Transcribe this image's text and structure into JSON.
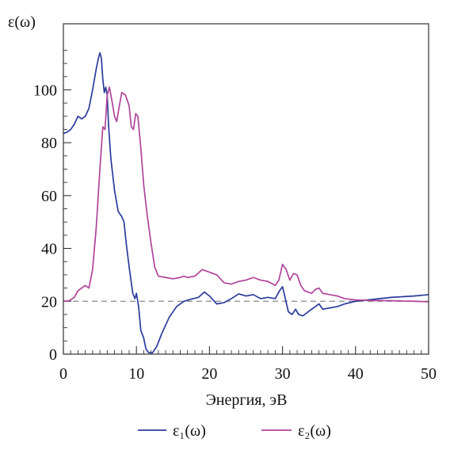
{
  "chart_data": {
    "type": "line",
    "title": "",
    "xlabel": "Энергия, эВ",
    "ylabel": "ε(ω)",
    "xlim": [
      0,
      50
    ],
    "ylim": [
      0,
      125
    ],
    "xticks": [
      0,
      10,
      20,
      30,
      40,
      50
    ],
    "yticks": [
      0,
      20,
      40,
      60,
      80,
      100
    ],
    "xtick_labels": [
      "0",
      "10",
      "20",
      "30",
      "40",
      "50"
    ],
    "ytick_labels": [
      "0",
      "20",
      "40",
      "60",
      "80",
      "100"
    ],
    "grid": false,
    "legend_position": "bottom",
    "reference_line": {
      "y": 20,
      "style": "dashed",
      "color": "#8a8a8a"
    },
    "series": [
      {
        "name": "ε₁(ω)",
        "color": "#2a3b9c",
        "points": [
          [
            0,
            83.5
          ],
          [
            0.5,
            84
          ],
          [
            1,
            85
          ],
          [
            1.5,
            87
          ],
          [
            2,
            90
          ],
          [
            2.5,
            89
          ],
          [
            3,
            90
          ],
          [
            3.5,
            93
          ],
          [
            4,
            100
          ],
          [
            4.5,
            108
          ],
          [
            4.8,
            112
          ],
          [
            5,
            114
          ],
          [
            5.2,
            112
          ],
          [
            5.4,
            104
          ],
          [
            5.6,
            99
          ],
          [
            5.8,
            101
          ],
          [
            6,
            98
          ],
          [
            6.2,
            86
          ],
          [
            6.5,
            74
          ],
          [
            7,
            62
          ],
          [
            7.5,
            54
          ],
          [
            8,
            52
          ],
          [
            8.3,
            50
          ],
          [
            8.6,
            42
          ],
          [
            9,
            33
          ],
          [
            9.5,
            23
          ],
          [
            9.8,
            21
          ],
          [
            10,
            23
          ],
          [
            10.3,
            18
          ],
          [
            10.6,
            9
          ],
          [
            11,
            6
          ],
          [
            11.3,
            2
          ],
          [
            11.7,
            0.5
          ],
          [
            12.2,
            0.5
          ],
          [
            12.8,
            3
          ],
          [
            13.5,
            8
          ],
          [
            14.5,
            14
          ],
          [
            15.5,
            18
          ],
          [
            16.5,
            20
          ],
          [
            17.5,
            20.8
          ],
          [
            18.5,
            21.5
          ],
          [
            19.3,
            23.5
          ],
          [
            20,
            22
          ],
          [
            21,
            19
          ],
          [
            22,
            19.5
          ],
          [
            23,
            21
          ],
          [
            24,
            22.8
          ],
          [
            25,
            22
          ],
          [
            26,
            22.5
          ],
          [
            27,
            21
          ],
          [
            28,
            21.5
          ],
          [
            29,
            21
          ],
          [
            29.6,
            24
          ],
          [
            30,
            25.5
          ],
          [
            30.3,
            22
          ],
          [
            30.8,
            16
          ],
          [
            31.3,
            15
          ],
          [
            31.8,
            17
          ],
          [
            32.2,
            15
          ],
          [
            32.8,
            14.5
          ],
          [
            33.5,
            16
          ],
          [
            34.5,
            18
          ],
          [
            35,
            19
          ],
          [
            35.5,
            17
          ],
          [
            36.5,
            17.5
          ],
          [
            37.5,
            18
          ],
          [
            38.5,
            19
          ],
          [
            40,
            20
          ],
          [
            42,
            20.6
          ],
          [
            45,
            21.5
          ],
          [
            48,
            22
          ],
          [
            50,
            22.5
          ]
        ]
      },
      {
        "name": "ε₂(ω)",
        "color": "#b0449a",
        "points": [
          [
            0,
            20
          ],
          [
            0.8,
            20.2
          ],
          [
            1.5,
            21.5
          ],
          [
            2,
            24
          ],
          [
            2.5,
            25
          ],
          [
            3,
            26
          ],
          [
            3.5,
            25
          ],
          [
            4,
            32
          ],
          [
            4.5,
            48
          ],
          [
            5,
            70
          ],
          [
            5.4,
            86
          ],
          [
            5.7,
            85
          ],
          [
            6,
            98
          ],
          [
            6.3,
            101
          ],
          [
            6.7,
            95
          ],
          [
            7,
            90
          ],
          [
            7.3,
            88
          ],
          [
            7.6,
            93
          ],
          [
            8,
            99
          ],
          [
            8.5,
            98
          ],
          [
            9,
            94
          ],
          [
            9.3,
            86
          ],
          [
            9.6,
            85
          ],
          [
            9.9,
            91
          ],
          [
            10.2,
            90
          ],
          [
            10.6,
            78
          ],
          [
            11,
            64
          ],
          [
            11.5,
            52
          ],
          [
            12,
            42
          ],
          [
            12.5,
            33
          ],
          [
            13,
            29.5
          ],
          [
            14,
            29
          ],
          [
            15,
            28.5
          ],
          [
            16,
            29
          ],
          [
            16.5,
            29.5
          ],
          [
            17,
            29
          ],
          [
            18,
            29.5
          ],
          [
            19,
            32
          ],
          [
            20,
            31
          ],
          [
            21,
            30
          ],
          [
            22,
            27
          ],
          [
            23,
            26.5
          ],
          [
            24,
            27.5
          ],
          [
            25,
            28
          ],
          [
            26,
            29
          ],
          [
            27,
            28
          ],
          [
            28,
            27.5
          ],
          [
            29,
            26
          ],
          [
            29.5,
            28
          ],
          [
            30,
            34
          ],
          [
            30.5,
            32
          ],
          [
            31,
            28
          ],
          [
            31.5,
            30.5
          ],
          [
            32,
            30
          ],
          [
            32.5,
            26
          ],
          [
            33,
            24
          ],
          [
            34,
            23
          ],
          [
            34.5,
            24.5
          ],
          [
            35,
            25
          ],
          [
            35.5,
            23
          ],
          [
            36.5,
            22.5
          ],
          [
            37.5,
            22
          ],
          [
            38.5,
            21
          ],
          [
            40,
            20.5
          ],
          [
            42,
            20.3
          ],
          [
            45,
            20.2
          ],
          [
            48,
            20
          ],
          [
            50,
            19.8
          ]
        ]
      }
    ]
  }
}
